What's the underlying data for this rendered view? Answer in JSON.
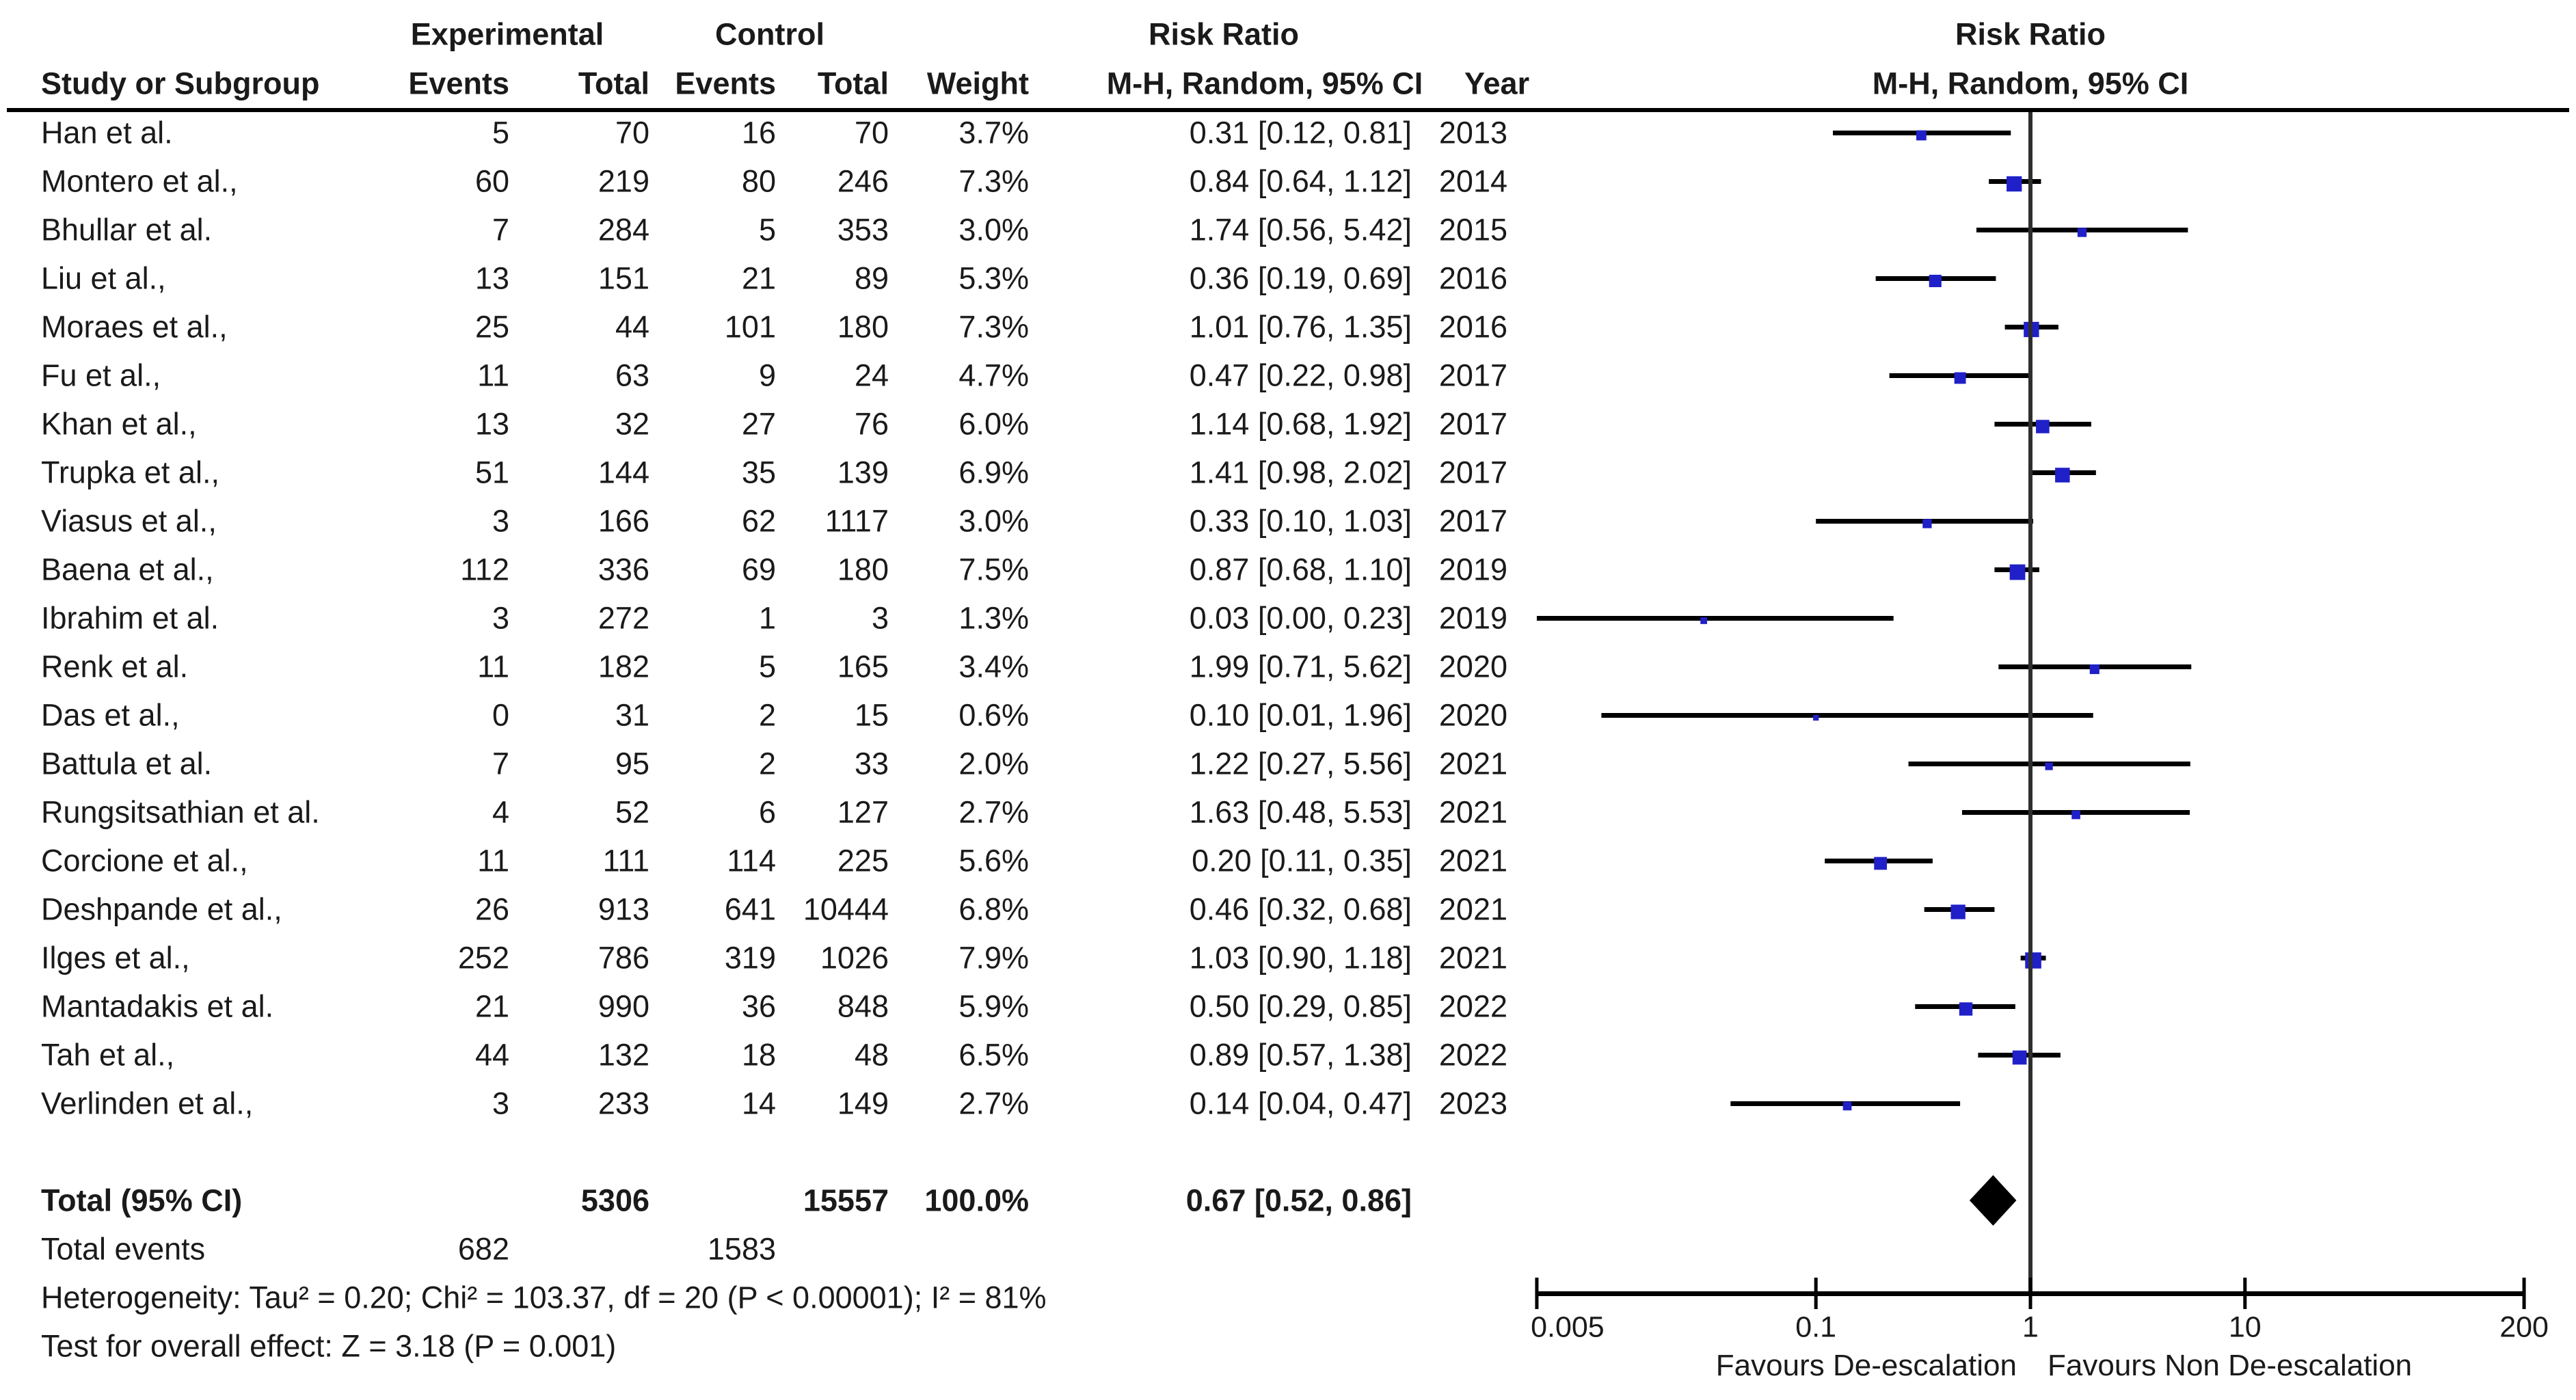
{
  "header": {
    "group_experimental": "Experimental",
    "group_control": "Control",
    "risk_ratio_left": "Risk Ratio",
    "risk_ratio_right": "Risk Ratio",
    "study": "Study or Subgroup",
    "events": "Events",
    "total": "Total",
    "events2": "Events",
    "total2": "Total",
    "weight": "Weight",
    "method_left": "M-H, Random, 95% CI",
    "year": "Year",
    "method_right": "M-H, Random, 95% CI"
  },
  "chart_data": {
    "type": "forest",
    "effect_measure": "Risk Ratio",
    "model": "M-H, Random, 95% CI",
    "x_axis": {
      "scale": "log",
      "min": 0.005,
      "max": 200,
      "ticks": [
        0.005,
        0.1,
        1,
        10,
        200
      ],
      "tick_labels": [
        "0.005",
        "0.1",
        "1",
        "10",
        "200"
      ]
    },
    "favours_left": "Favours De-escalation",
    "favours_right": "Favours Non De-escalation",
    "marker_color": "#2020c8",
    "line_color": "#000000",
    "axis_color": "#000000",
    "studies": [
      {
        "name": "Han et al.",
        "exp_events": "5",
        "exp_total": "70",
        "ctrl_events": "16",
        "ctrl_total": "70",
        "weight": "3.7%",
        "weight_value": 3.7,
        "rr": 0.31,
        "ci_low": 0.12,
        "ci_high": 0.81,
        "rr_text": "0.31 [0.12, 0.81]",
        "year": "2013"
      },
      {
        "name": "Montero et al.,",
        "exp_events": "60",
        "exp_total": "219",
        "ctrl_events": "80",
        "ctrl_total": "246",
        "weight": "7.3%",
        "weight_value": 7.3,
        "rr": 0.84,
        "ci_low": 0.64,
        "ci_high": 1.12,
        "rr_text": "0.84 [0.64, 1.12]",
        "year": "2014"
      },
      {
        "name": "Bhullar et al.",
        "exp_events": "7",
        "exp_total": "284",
        "ctrl_events": "5",
        "ctrl_total": "353",
        "weight": "3.0%",
        "weight_value": 3.0,
        "rr": 1.74,
        "ci_low": 0.56,
        "ci_high": 5.42,
        "rr_text": "1.74 [0.56, 5.42]",
        "year": "2015"
      },
      {
        "name": "Liu et al.,",
        "exp_events": "13",
        "exp_total": "151",
        "ctrl_events": "21",
        "ctrl_total": "89",
        "weight": "5.3%",
        "weight_value": 5.3,
        "rr": 0.36,
        "ci_low": 0.19,
        "ci_high": 0.69,
        "rr_text": "0.36 [0.19, 0.69]",
        "year": "2016"
      },
      {
        "name": "Moraes et al.,",
        "exp_events": "25",
        "exp_total": "44",
        "ctrl_events": "101",
        "ctrl_total": "180",
        "weight": "7.3%",
        "weight_value": 7.3,
        "rr": 1.01,
        "ci_low": 0.76,
        "ci_high": 1.35,
        "rr_text": "1.01 [0.76, 1.35]",
        "year": "2016"
      },
      {
        "name": "Fu et al.,",
        "exp_events": "11",
        "exp_total": "63",
        "ctrl_events": "9",
        "ctrl_total": "24",
        "weight": "4.7%",
        "weight_value": 4.7,
        "rr": 0.47,
        "ci_low": 0.22,
        "ci_high": 0.98,
        "rr_text": "0.47 [0.22, 0.98]",
        "year": "2017"
      },
      {
        "name": "Khan et al.,",
        "exp_events": "13",
        "exp_total": "32",
        "ctrl_events": "27",
        "ctrl_total": "76",
        "weight": "6.0%",
        "weight_value": 6.0,
        "rr": 1.14,
        "ci_low": 0.68,
        "ci_high": 1.92,
        "rr_text": "1.14 [0.68, 1.92]",
        "year": "2017"
      },
      {
        "name": "Trupka et al.,",
        "exp_events": "51",
        "exp_total": "144",
        "ctrl_events": "35",
        "ctrl_total": "139",
        "weight": "6.9%",
        "weight_value": 6.9,
        "rr": 1.41,
        "ci_low": 0.98,
        "ci_high": 2.02,
        "rr_text": "1.41 [0.98, 2.02]",
        "year": "2017"
      },
      {
        "name": "Viasus et al.,",
        "exp_events": "3",
        "exp_total": "166",
        "ctrl_events": "62",
        "ctrl_total": "1117",
        "weight": "3.0%",
        "weight_value": 3.0,
        "rr": 0.33,
        "ci_low": 0.1,
        "ci_high": 1.03,
        "rr_text": "0.33 [0.10, 1.03]",
        "year": "2017"
      },
      {
        "name": "Baena et al.,",
        "exp_events": "112",
        "exp_total": "336",
        "ctrl_events": "69",
        "ctrl_total": "180",
        "weight": "7.5%",
        "weight_value": 7.5,
        "rr": 0.87,
        "ci_low": 0.68,
        "ci_high": 1.1,
        "rr_text": "0.87 [0.68, 1.10]",
        "year": "2019"
      },
      {
        "name": "Ibrahim et al.",
        "exp_events": "3",
        "exp_total": "272",
        "ctrl_events": "1",
        "ctrl_total": "3",
        "weight": "1.3%",
        "weight_value": 1.3,
        "rr": 0.03,
        "ci_low": 0.005,
        "ci_high": 0.23,
        "rr_text": "0.03 [0.00, 0.23]",
        "year": "2019"
      },
      {
        "name": "Renk et al.",
        "exp_events": "11",
        "exp_total": "182",
        "ctrl_events": "5",
        "ctrl_total": "165",
        "weight": "3.4%",
        "weight_value": 3.4,
        "rr": 1.99,
        "ci_low": 0.71,
        "ci_high": 5.62,
        "rr_text": "1.99 [0.71, 5.62]",
        "year": "2020"
      },
      {
        "name": "Das et al.,",
        "exp_events": "0",
        "exp_total": "31",
        "ctrl_events": "2",
        "ctrl_total": "15",
        "weight": "0.6%",
        "weight_value": 0.6,
        "rr": 0.1,
        "ci_low": 0.01,
        "ci_high": 1.96,
        "rr_text": "0.10 [0.01, 1.96]",
        "year": "2020"
      },
      {
        "name": "Battula et al.",
        "exp_events": "7",
        "exp_total": "95",
        "ctrl_events": "2",
        "ctrl_total": "33",
        "weight": "2.0%",
        "weight_value": 2.0,
        "rr": 1.22,
        "ci_low": 0.27,
        "ci_high": 5.56,
        "rr_text": "1.22 [0.27, 5.56]",
        "year": "2021"
      },
      {
        "name": "Rungsitsathian et al.",
        "exp_events": "4",
        "exp_total": "52",
        "ctrl_events": "6",
        "ctrl_total": "127",
        "weight": "2.7%",
        "weight_value": 2.7,
        "rr": 1.63,
        "ci_low": 0.48,
        "ci_high": 5.53,
        "rr_text": "1.63 [0.48, 5.53]",
        "year": "2021"
      },
      {
        "name": "Corcione et al.,",
        "exp_events": "11",
        "exp_total": "111",
        "ctrl_events": "114",
        "ctrl_total": "225",
        "weight": "5.6%",
        "weight_value": 5.6,
        "rr": 0.2,
        "ci_low": 0.11,
        "ci_high": 0.35,
        "rr_text": "0.20 [0.11, 0.35]",
        "year": "2021"
      },
      {
        "name": "Deshpande et al.,",
        "exp_events": "26",
        "exp_total": "913",
        "ctrl_events": "641",
        "ctrl_total": "10444",
        "weight": "6.8%",
        "weight_value": 6.8,
        "rr": 0.46,
        "ci_low": 0.32,
        "ci_high": 0.68,
        "rr_text": "0.46 [0.32, 0.68]",
        "year": "2021"
      },
      {
        "name": "Ilges et al.,",
        "exp_events": "252",
        "exp_total": "786",
        "ctrl_events": "319",
        "ctrl_total": "1026",
        "weight": "7.9%",
        "weight_value": 7.9,
        "rr": 1.03,
        "ci_low": 0.9,
        "ci_high": 1.18,
        "rr_text": "1.03 [0.90, 1.18]",
        "year": "2021"
      },
      {
        "name": "Mantadakis et al.",
        "exp_events": "21",
        "exp_total": "990",
        "ctrl_events": "36",
        "ctrl_total": "848",
        "weight": "5.9%",
        "weight_value": 5.9,
        "rr": 0.5,
        "ci_low": 0.29,
        "ci_high": 0.85,
        "rr_text": "0.50 [0.29, 0.85]",
        "year": "2022"
      },
      {
        "name": "Tah et al.,",
        "exp_events": "44",
        "exp_total": "132",
        "ctrl_events": "18",
        "ctrl_total": "48",
        "weight": "6.5%",
        "weight_value": 6.5,
        "rr": 0.89,
        "ci_low": 0.57,
        "ci_high": 1.38,
        "rr_text": "0.89 [0.57, 1.38]",
        "year": "2022"
      },
      {
        "name": "Verlinden et al.,",
        "exp_events": "3",
        "exp_total": "233",
        "ctrl_events": "14",
        "ctrl_total": "149",
        "weight": "2.7%",
        "weight_value": 2.7,
        "rr": 0.14,
        "ci_low": 0.04,
        "ci_high": 0.47,
        "rr_text": "0.14 [0.04, 0.47]",
        "year": "2023"
      }
    ],
    "total": {
      "label": "Total (95% CI)",
      "exp_total": "5306",
      "ctrl_total": "15557",
      "weight": "100.0%",
      "rr": 0.67,
      "ci_low": 0.52,
      "ci_high": 0.86,
      "rr_text": "0.67 [0.52, 0.86]"
    },
    "total_events": {
      "label": "Total events",
      "exp": "682",
      "ctrl": "1583"
    },
    "heterogeneity": "Heterogeneity: Tau² = 0.20; Chi² = 103.37, df = 20 (P < 0.00001); I² = 81%",
    "overall_effect": "Test for overall effect: Z = 3.18 (P = 0.001)"
  }
}
